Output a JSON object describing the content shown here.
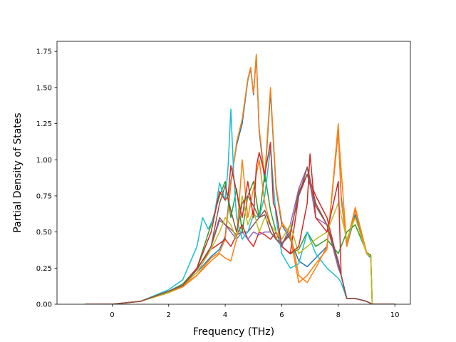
{
  "chart_data": {
    "type": "line",
    "title": "",
    "xlabel": "Frequency (THz)",
    "ylabel": "Partial Density of States",
    "xlim": [
      -1.95,
      10.55
    ],
    "ylim": [
      0,
      1.82
    ],
    "xticks": [
      0,
      2,
      4,
      6,
      8,
      10
    ],
    "xtick_labels": [
      "0",
      "2",
      "4",
      "6",
      "8",
      "10"
    ],
    "yticks": [
      0,
      0.25,
      0.5,
      0.75,
      1.0,
      1.25,
      1.5,
      1.75
    ],
    "ytick_labels": [
      "0.00",
      "0.25",
      "0.50",
      "0.75",
      "1.00",
      "1.25",
      "1.50",
      "1.75"
    ],
    "grid": false,
    "legend": "none",
    "series": [
      {
        "color": "#1f77b4",
        "x": [
          -0.95,
          0,
          1,
          2,
          2.5,
          3,
          3.5,
          3.8,
          4,
          4.2,
          4.4,
          4.6,
          4.8,
          4.9,
          5,
          5.1,
          5.2,
          5.4,
          5.6,
          5.8,
          6,
          6.3,
          6.6,
          6.9,
          7.2,
          7.6,
          8,
          8.1,
          8.3,
          8.6,
          9,
          9.15,
          9.2,
          10
        ],
        "values": [
          0,
          0,
          0.02,
          0.08,
          0.13,
          0.22,
          0.33,
          0.38,
          0.47,
          0.85,
          1.1,
          1.25,
          1.55,
          1.63,
          1.45,
          1.72,
          1.2,
          0.85,
          1.47,
          0.8,
          0.55,
          0.45,
          0.3,
          0.26,
          0.32,
          0.4,
          1.2,
          0.75,
          0.4,
          0.62,
          0.35,
          0.32,
          0,
          0
        ]
      },
      {
        "color": "#ff7f0e",
        "x": [
          -0.95,
          0,
          1,
          2,
          2.5,
          3,
          3.5,
          3.8,
          4,
          4.2,
          4.4,
          4.6,
          4.8,
          4.9,
          5,
          5.1,
          5.2,
          5.4,
          5.6,
          5.8,
          6,
          6.3,
          6.6,
          6.9,
          7.2,
          7.6,
          8,
          8.1,
          8.3,
          8.6,
          9,
          9.15,
          9.2,
          10
        ],
        "values": [
          0,
          0,
          0.02,
          0.08,
          0.13,
          0.2,
          0.32,
          0.36,
          0.45,
          0.83,
          1.12,
          1.28,
          1.56,
          1.64,
          1.46,
          1.73,
          1.22,
          0.88,
          1.5,
          0.82,
          0.57,
          0.47,
          0.15,
          0.2,
          0.28,
          0.38,
          1.25,
          0.72,
          0.42,
          0.67,
          0.36,
          0.33,
          0,
          0
        ]
      },
      {
        "color": "#2ca02c",
        "x": [
          -0.95,
          0,
          1,
          2,
          2.5,
          3,
          3.5,
          3.8,
          4,
          4.2,
          4.4,
          4.6,
          4.8,
          5,
          5.2,
          5.4,
          5.6,
          5.8,
          6,
          6.3,
          6.6,
          6.9,
          7.2,
          7.6,
          8,
          8.3,
          8.6,
          9,
          9.15,
          9.2,
          10
        ],
        "values": [
          0,
          0,
          0.02,
          0.09,
          0.14,
          0.25,
          0.55,
          0.75,
          0.85,
          0.6,
          0.8,
          0.5,
          0.75,
          0.85,
          0.6,
          0.9,
          0.65,
          0.5,
          0.4,
          0.35,
          0.38,
          0.5,
          0.4,
          0.45,
          0.35,
          0.5,
          0.55,
          0.36,
          0.34,
          0,
          0
        ]
      },
      {
        "color": "#d62728",
        "x": [
          -0.95,
          0,
          1,
          2,
          2.5,
          3,
          3.5,
          3.8,
          4,
          4.2,
          4.4,
          4.6,
          4.8,
          5,
          5.2,
          5.4,
          5.6,
          5.8,
          6,
          6.3,
          6.6,
          6.9,
          7.2,
          7.6,
          8,
          8.1,
          8.3,
          8.6,
          9,
          9.1,
          9.2,
          10
        ],
        "values": [
          0,
          0,
          0.02,
          0.09,
          0.13,
          0.25,
          0.38,
          0.42,
          0.45,
          0.4,
          0.48,
          0.55,
          0.45,
          0.4,
          0.5,
          0.48,
          0.45,
          0.5,
          0.4,
          0.35,
          0.75,
          0.9,
          0.75,
          0.6,
          0.28,
          0.2,
          0.04,
          0.04,
          0.02,
          0.01,
          0,
          0
        ]
      },
      {
        "color": "#9467bd",
        "x": [
          -0.95,
          0,
          1,
          2,
          2.5,
          3,
          3.5,
          3.8,
          4,
          4.2,
          4.4,
          4.6,
          4.8,
          5,
          5.2,
          5.4,
          5.6,
          5.8,
          6,
          6.3,
          6.6,
          6.9,
          7.2,
          7.6,
          8,
          8.1,
          8.3,
          8.6,
          9,
          9.1,
          9.2,
          10
        ],
        "values": [
          0,
          0,
          0.02,
          0.09,
          0.13,
          0.24,
          0.4,
          0.58,
          0.55,
          0.5,
          0.45,
          0.5,
          0.45,
          0.5,
          0.48,
          0.5,
          0.5,
          0.45,
          0.4,
          0.55,
          0.8,
          0.95,
          0.6,
          0.55,
          0.25,
          0.2,
          0.04,
          0.04,
          0.02,
          0.01,
          0,
          0
        ]
      },
      {
        "color": "#8c564b",
        "x": [
          -0.95,
          0,
          1,
          2,
          2.5,
          3,
          3.5,
          3.8,
          4,
          4.2,
          4.4,
          4.6,
          4.8,
          5,
          5.2,
          5.4,
          5.6,
          5.8,
          6,
          6.3,
          6.6,
          6.9,
          7.2,
          7.6,
          8,
          8.1,
          8.3,
          8.6,
          9,
          9.1,
          9.2,
          10
        ],
        "values": [
          0,
          0,
          0.02,
          0.09,
          0.13,
          0.24,
          0.4,
          0.6,
          0.55,
          0.52,
          0.48,
          0.5,
          0.5,
          0.55,
          0.6,
          0.62,
          0.5,
          0.45,
          0.42,
          0.5,
          0.75,
          0.95,
          0.7,
          0.55,
          0.3,
          0.2,
          0.04,
          0.04,
          0.02,
          0.01,
          0,
          0
        ]
      },
      {
        "color": "#17becf",
        "x": [
          -0.95,
          0,
          1,
          2,
          2.5,
          3,
          3.2,
          3.4,
          3.6,
          3.8,
          4,
          4.1,
          4.2,
          4.3,
          4.4,
          4.6,
          4.8,
          5,
          5.2,
          5.4,
          5.6,
          5.8,
          6,
          6.3,
          6.6,
          6.9,
          7.2,
          7.6,
          8,
          8.1,
          8.3,
          8.6,
          9,
          9.1,
          9.2,
          10
        ],
        "values": [
          0,
          0,
          0.02,
          0.1,
          0.17,
          0.4,
          0.6,
          0.52,
          0.6,
          0.84,
          0.72,
          0.95,
          1.35,
          0.9,
          0.6,
          0.45,
          0.5,
          0.62,
          0.6,
          0.75,
          1.08,
          0.6,
          0.35,
          0.25,
          0.28,
          0.5,
          0.35,
          0.25,
          0.18,
          0.15,
          0.04,
          0.04,
          0.02,
          0.01,
          0,
          0
        ]
      },
      {
        "color": "#ff7f0e",
        "x": [
          -0.95,
          0,
          1,
          2,
          2.5,
          3,
          3.5,
          3.8,
          4,
          4.2,
          4.4,
          4.6,
          4.8,
          5,
          5.2,
          5.4,
          5.6,
          5.8,
          6,
          6.3,
          6.6,
          6.9,
          7.2,
          7.6,
          8,
          8.3,
          8.6,
          9,
          9.15,
          9.2,
          10
        ],
        "values": [
          0,
          0,
          0.02,
          0.08,
          0.12,
          0.2,
          0.3,
          0.35,
          0.32,
          0.3,
          0.45,
          1.0,
          0.6,
          0.8,
          1.0,
          0.7,
          0.55,
          0.45,
          0.55,
          0.5,
          0.2,
          0.15,
          0.25,
          0.4,
          1.2,
          0.4,
          0.65,
          0.36,
          0.33,
          0,
          0
        ]
      },
      {
        "color": "#bcbd22",
        "x": [
          -0.95,
          0,
          1,
          2,
          2.5,
          3,
          3.5,
          3.8,
          4,
          4.2,
          4.4,
          4.6,
          4.8,
          5,
          5.2,
          5.4,
          5.6,
          5.8,
          6,
          6.3,
          6.6,
          6.9,
          7.2,
          7.6,
          8,
          8.3,
          8.6,
          9,
          9.15,
          9.2,
          10
        ],
        "values": [
          0,
          0,
          0.02,
          0.08,
          0.13,
          0.22,
          0.38,
          0.5,
          0.6,
          0.55,
          0.45,
          0.75,
          0.55,
          0.65,
          0.5,
          0.6,
          0.55,
          0.5,
          0.45,
          0.55,
          0.35,
          0.4,
          0.45,
          0.5,
          0.7,
          0.45,
          0.6,
          0.35,
          0.33,
          0,
          0
        ]
      },
      {
        "color": "#d62728",
        "x": [
          -0.95,
          0,
          1,
          2,
          2.5,
          3,
          3.5,
          3.8,
          4,
          4.1,
          4.2,
          4.4,
          4.6,
          4.8,
          5,
          5.1,
          5.2,
          5.4,
          5.6,
          5.7,
          5.8,
          6,
          6.3,
          6.6,
          6.9,
          7,
          7.2,
          7.6,
          8,
          8.1,
          8.3,
          8.6,
          9,
          9.1,
          9.2,
          10
        ],
        "values": [
          0,
          0,
          0.02,
          0.09,
          0.13,
          0.25,
          0.5,
          0.78,
          0.72,
          0.75,
          0.96,
          0.78,
          0.6,
          0.85,
          0.6,
          0.95,
          1.05,
          0.9,
          1.12,
          0.7,
          0.65,
          0.4,
          0.35,
          0.4,
          0.7,
          1.04,
          0.6,
          0.5,
          0.85,
          0.2,
          0.04,
          0.04,
          0.02,
          0.01,
          0,
          0
        ]
      },
      {
        "color": "#8c564b",
        "x": [
          -0.95,
          0,
          1,
          2,
          2.5,
          3,
          3.5,
          3.8,
          4,
          4.2,
          4.4,
          4.6,
          4.8,
          5,
          5.2,
          5.4,
          5.6,
          5.8,
          6,
          6.3,
          6.6,
          6.9,
          7.2,
          7.6,
          8,
          8.1,
          8.3,
          8.6,
          9,
          9.1,
          9.2,
          10
        ],
        "values": [
          0,
          0,
          0.02,
          0.09,
          0.13,
          0.24,
          0.4,
          0.7,
          0.82,
          0.65,
          0.5,
          0.7,
          0.75,
          0.68,
          0.6,
          0.65,
          0.55,
          0.45,
          0.42,
          0.48,
          0.78,
          0.9,
          0.68,
          0.55,
          0.28,
          0.2,
          0.04,
          0.04,
          0.02,
          0.01,
          0,
          0
        ]
      }
    ]
  }
}
